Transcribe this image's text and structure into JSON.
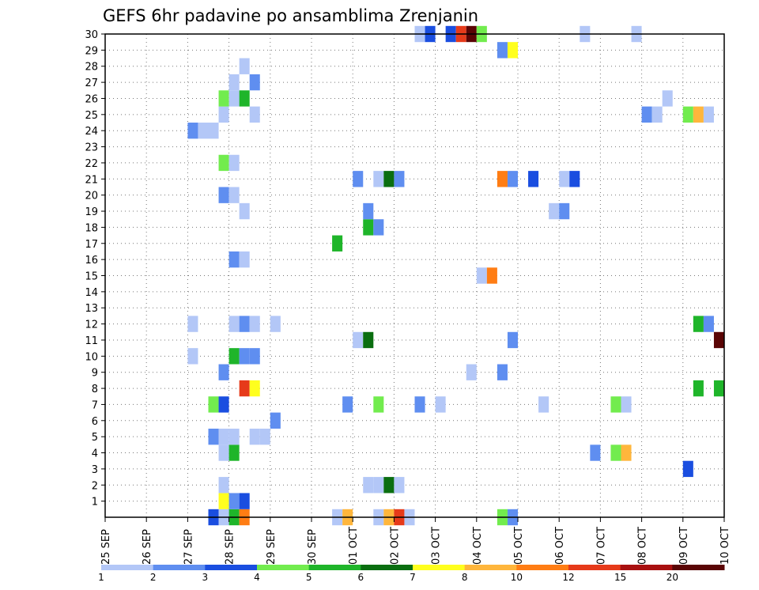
{
  "chart_data": {
    "type": "heatmap",
    "title": "GEFS 6hr padavine po ansamblima Zrenjanin",
    "xlabel": "",
    "ylabel": "",
    "x_ticks": [
      "25 SEP",
      "26 SEP",
      "27 SEP",
      "28 SEP",
      "29 SEP",
      "30 SEP",
      "01 OCT",
      "02 OCT",
      "03 OCT",
      "04 OCT",
      "05 OCT",
      "06 OCT",
      "07 OCT",
      "08 OCT",
      "09 OCT",
      "10 OCT"
    ],
    "y_ticks": [
      "1",
      "2",
      "3",
      "4",
      "5",
      "6",
      "7",
      "8",
      "9",
      "10",
      "11",
      "12",
      "13",
      "14",
      "15",
      "16",
      "17",
      "18",
      "19",
      "20",
      "21",
      "22",
      "23",
      "24",
      "25",
      "26",
      "27",
      "28",
      "29",
      "30"
    ],
    "x_unit": "6-hour step (4 per day, 0 = 25 SEP 00Z)",
    "x_range": [
      0,
      60
    ],
    "y_range": [
      0,
      30
    ],
    "grid": true,
    "colorbar": {
      "labels": [
        "1",
        "2",
        "3",
        "4",
        "5",
        "6",
        "7",
        "8",
        "10",
        "12",
        "15",
        "20"
      ],
      "colors": [
        "#b3c7f7",
        "#5f8ef0",
        "#1a4ee0",
        "#72ec4e",
        "#1fb52a",
        "#0a6e10",
        "#ffff1e",
        "#ffb63c",
        "#ff7d14",
        "#e63a1a",
        "#a81010",
        "#5a0505"
      ]
    },
    "cells": [
      {
        "member": 0,
        "x": 10.5,
        "cat": 3
      },
      {
        "member": 0,
        "x": 11.5,
        "cat": 1
      },
      {
        "member": 0,
        "x": 12.5,
        "cat": 5
      },
      {
        "member": 0,
        "x": 13.5,
        "cat": 9
      },
      {
        "member": 0,
        "x": 22.5,
        "cat": 1
      },
      {
        "member": 0,
        "x": 23.5,
        "cat": 8
      },
      {
        "member": 0,
        "x": 26.5,
        "cat": 1
      },
      {
        "member": 0,
        "x": 27.5,
        "cat": 8
      },
      {
        "member": 0,
        "x": 28.5,
        "cat": 10
      },
      {
        "member": 0,
        "x": 29.5,
        "cat": 1
      },
      {
        "member": 0,
        "x": 38.5,
        "cat": 4
      },
      {
        "member": 0,
        "x": 39.5,
        "cat": 2
      },
      {
        "member": 1,
        "x": 11.5,
        "cat": 7
      },
      {
        "member": 1,
        "x": 12.5,
        "cat": 2
      },
      {
        "member": 1,
        "x": 13.5,
        "cat": 3
      },
      {
        "member": 2,
        "x": 11.5,
        "cat": 1
      },
      {
        "member": 2,
        "x": 25.5,
        "cat": 1
      },
      {
        "member": 2,
        "x": 26.5,
        "cat": 1
      },
      {
        "member": 2,
        "x": 27.5,
        "cat": 6
      },
      {
        "member": 2,
        "x": 28.5,
        "cat": 1
      },
      {
        "member": 3,
        "x": 56.5,
        "cat": 3
      },
      {
        "member": 4,
        "x": 11.5,
        "cat": 1
      },
      {
        "member": 4,
        "x": 12.5,
        "cat": 5
      },
      {
        "member": 4,
        "x": 47.5,
        "cat": 2
      },
      {
        "member": 4,
        "x": 49.5,
        "cat": 4
      },
      {
        "member": 4,
        "x": 50.5,
        "cat": 8
      },
      {
        "member": 5,
        "x": 10.5,
        "cat": 2
      },
      {
        "member": 5,
        "x": 11.5,
        "cat": 1
      },
      {
        "member": 5,
        "x": 12.5,
        "cat": 1
      },
      {
        "member": 5,
        "x": 14.5,
        "cat": 1
      },
      {
        "member": 5,
        "x": 15.5,
        "cat": 1
      },
      {
        "member": 6,
        "x": 16.5,
        "cat": 2
      },
      {
        "member": 7,
        "x": 10.5,
        "cat": 4
      },
      {
        "member": 7,
        "x": 11.5,
        "cat": 3
      },
      {
        "member": 7,
        "x": 23.5,
        "cat": 2
      },
      {
        "member": 7,
        "x": 26.5,
        "cat": 4
      },
      {
        "member": 7,
        "x": 30.5,
        "cat": 2
      },
      {
        "member": 7,
        "x": 32.5,
        "cat": 1
      },
      {
        "member": 7,
        "x": 42.5,
        "cat": 1
      },
      {
        "member": 7,
        "x": 49.5,
        "cat": 4
      },
      {
        "member": 7,
        "x": 50.5,
        "cat": 1
      },
      {
        "member": 8,
        "x": 13.5,
        "cat": 10
      },
      {
        "member": 8,
        "x": 14.5,
        "cat": 7
      },
      {
        "member": 8,
        "x": 57.5,
        "cat": 5
      },
      {
        "member": 8,
        "x": 59.5,
        "cat": 5
      },
      {
        "member": 9,
        "x": 11.5,
        "cat": 2
      },
      {
        "member": 9,
        "x": 35.5,
        "cat": 1
      },
      {
        "member": 9,
        "x": 38.5,
        "cat": 2
      },
      {
        "member": 10,
        "x": 8.5,
        "cat": 1
      },
      {
        "member": 10,
        "x": 12.5,
        "cat": 5
      },
      {
        "member": 10,
        "x": 13.5,
        "cat": 2
      },
      {
        "member": 10,
        "x": 14.5,
        "cat": 2
      },
      {
        "member": 11,
        "x": 24.5,
        "cat": 1
      },
      {
        "member": 11,
        "x": 25.5,
        "cat": 6
      },
      {
        "member": 11,
        "x": 39.5,
        "cat": 2
      },
      {
        "member": 11,
        "x": 59.5,
        "cat": 12
      },
      {
        "member": 12,
        "x": 8.5,
        "cat": 1
      },
      {
        "member": 12,
        "x": 12.5,
        "cat": 1
      },
      {
        "member": 12,
        "x": 13.5,
        "cat": 2
      },
      {
        "member": 12,
        "x": 14.5,
        "cat": 1
      },
      {
        "member": 12,
        "x": 16.5,
        "cat": 1
      },
      {
        "member": 12,
        "x": 57.5,
        "cat": 5
      },
      {
        "member": 12,
        "x": 58.5,
        "cat": 2
      },
      {
        "member": 15,
        "x": 36.5,
        "cat": 1
      },
      {
        "member": 15,
        "x": 37.5,
        "cat": 9
      },
      {
        "member": 16,
        "x": 12.5,
        "cat": 2
      },
      {
        "member": 16,
        "x": 13.5,
        "cat": 1
      },
      {
        "member": 17,
        "x": 22.5,
        "cat": 5
      },
      {
        "member": 18,
        "x": 25.5,
        "cat": 5
      },
      {
        "member": 18,
        "x": 26.5,
        "cat": 2
      },
      {
        "member": 19,
        "x": 13.5,
        "cat": 1
      },
      {
        "member": 19,
        "x": 25.5,
        "cat": 2
      },
      {
        "member": 19,
        "x": 43.5,
        "cat": 1
      },
      {
        "member": 19,
        "x": 44.5,
        "cat": 2
      },
      {
        "member": 20,
        "x": 11.5,
        "cat": 2
      },
      {
        "member": 20,
        "x": 12.5,
        "cat": 1
      },
      {
        "member": 21,
        "x": 24.5,
        "cat": 2
      },
      {
        "member": 21,
        "x": 26.5,
        "cat": 1
      },
      {
        "member": 21,
        "x": 27.5,
        "cat": 6
      },
      {
        "member": 21,
        "x": 28.5,
        "cat": 2
      },
      {
        "member": 21,
        "x": 38.5,
        "cat": 9
      },
      {
        "member": 21,
        "x": 39.5,
        "cat": 2
      },
      {
        "member": 21,
        "x": 41.5,
        "cat": 3
      },
      {
        "member": 21,
        "x": 44.5,
        "cat": 1
      },
      {
        "member": 21,
        "x": 45.5,
        "cat": 3
      },
      {
        "member": 22,
        "x": 11.5,
        "cat": 4
      },
      {
        "member": 22,
        "x": 12.5,
        "cat": 1
      },
      {
        "member": 24,
        "x": 8.5,
        "cat": 2
      },
      {
        "member": 24,
        "x": 9.5,
        "cat": 1
      },
      {
        "member": 24,
        "x": 10.5,
        "cat": 1
      },
      {
        "member": 25,
        "x": 11.5,
        "cat": 1
      },
      {
        "member": 25,
        "x": 14.5,
        "cat": 1
      },
      {
        "member": 25,
        "x": 52.5,
        "cat": 2
      },
      {
        "member": 25,
        "x": 53.5,
        "cat": 1
      },
      {
        "member": 25,
        "x": 56.5,
        "cat": 4
      },
      {
        "member": 25,
        "x": 57.5,
        "cat": 8
      },
      {
        "member": 25,
        "x": 58.5,
        "cat": 1
      },
      {
        "member": 26,
        "x": 11.5,
        "cat": 4
      },
      {
        "member": 26,
        "x": 12.5,
        "cat": 1
      },
      {
        "member": 26,
        "x": 13.5,
        "cat": 5
      },
      {
        "member": 26,
        "x": 54.5,
        "cat": 1
      },
      {
        "member": 27,
        "x": 12.5,
        "cat": 1
      },
      {
        "member": 27,
        "x": 14.5,
        "cat": 2
      },
      {
        "member": 28,
        "x": 13.5,
        "cat": 1
      },
      {
        "member": 29,
        "x": 38.5,
        "cat": 2
      },
      {
        "member": 29,
        "x": 39.5,
        "cat": 7
      },
      {
        "member": 30,
        "x": 30.5,
        "cat": 1
      },
      {
        "member": 30,
        "x": 31.5,
        "cat": 3
      },
      {
        "member": 30,
        "x": 33.5,
        "cat": 3
      },
      {
        "member": 30,
        "x": 34.5,
        "cat": 10
      },
      {
        "member": 30,
        "x": 35.5,
        "cat": 12
      },
      {
        "member": 30,
        "x": 36.5,
        "cat": 4
      },
      {
        "member": 30,
        "x": 46.5,
        "cat": 1
      },
      {
        "member": 30,
        "x": 51.5,
        "cat": 1
      }
    ]
  }
}
